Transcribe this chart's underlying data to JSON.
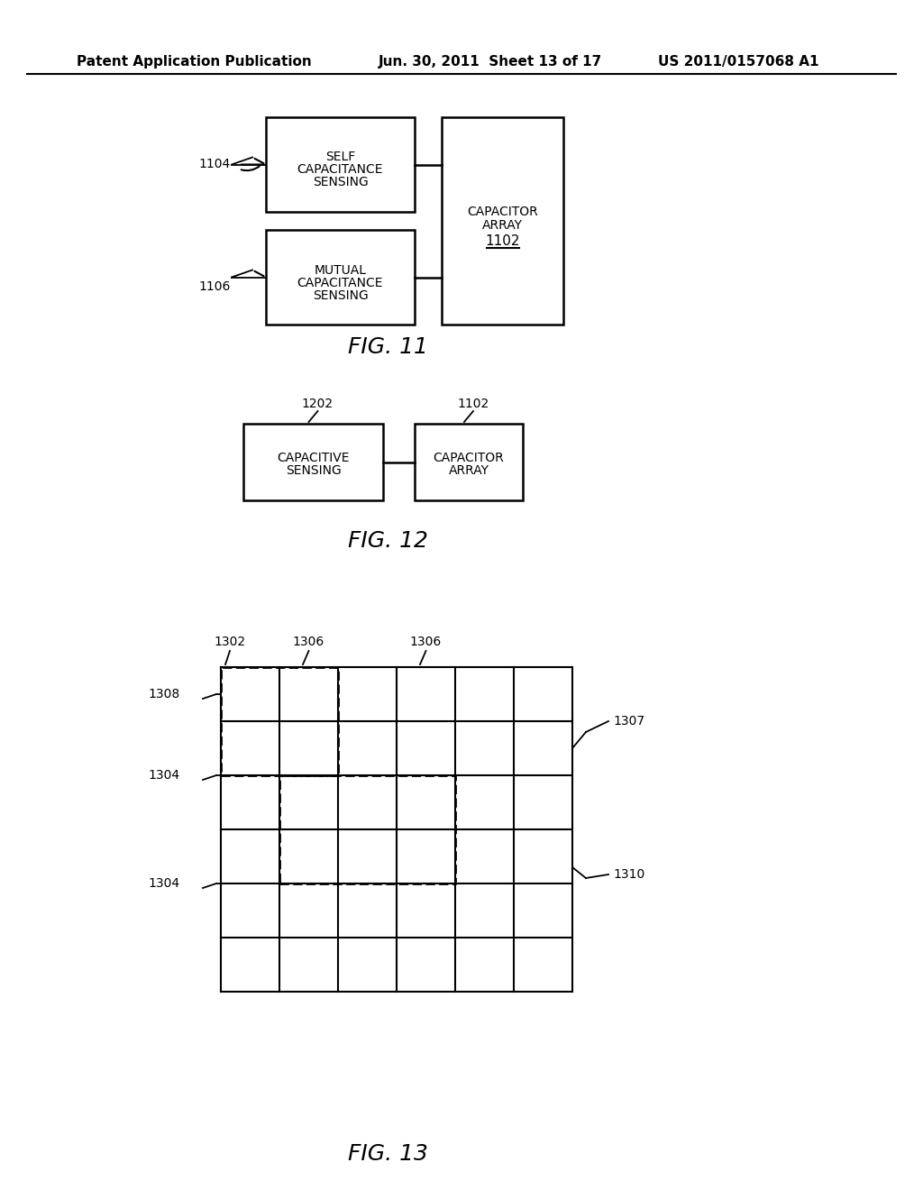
{
  "bg_color": "#ffffff",
  "header_left": "Patent Application Publication",
  "header_mid": "Jun. 30, 2011  Sheet 13 of 17",
  "header_right": "US 2011/0157068 A1",
  "fig11_caption": "FIG. 11",
  "fig12_caption": "FIG. 12",
  "fig13_caption": "FIG. 13"
}
